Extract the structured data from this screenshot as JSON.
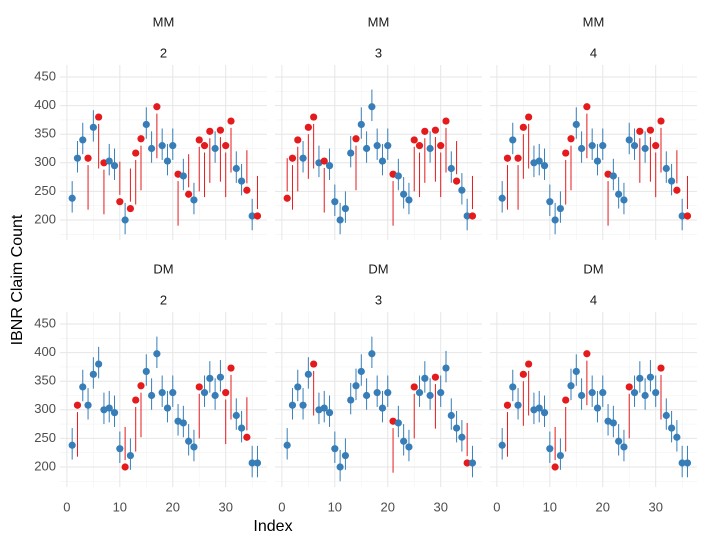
{
  "xlabel": "Index",
  "ylabel": "IBNR Claim Count",
  "chart_data": [
    {
      "type": "scatter",
      "title": "MM",
      "subtitle": "2",
      "x": [
        1,
        2,
        3,
        4,
        5,
        6,
        7,
        8,
        9,
        10,
        11,
        12,
        13,
        14,
        15,
        16,
        17,
        18,
        19,
        20,
        21,
        22,
        23,
        24,
        25,
        26,
        27,
        28,
        29,
        30,
        31,
        32,
        33,
        34,
        35,
        36
      ],
      "values": [
        238,
        308,
        340,
        308,
        362,
        380,
        300,
        303,
        295,
        232,
        200,
        220,
        317,
        342,
        367,
        325,
        398,
        330,
        303,
        330,
        280,
        277,
        245,
        235,
        340,
        330,
        355,
        325,
        357,
        330,
        373,
        290,
        268,
        252,
        207,
        207
      ],
      "lower": [
        213,
        283,
        315,
        218,
        337,
        290,
        210,
        278,
        270,
        244,
        175,
        232,
        227,
        252,
        342,
        300,
        308,
        305,
        278,
        305,
        190,
        252,
        257,
        210,
        250,
        240,
        265,
        300,
        267,
        240,
        283,
        265,
        243,
        264,
        182,
        219
      ],
      "upper": [
        268,
        338,
        370,
        296,
        392,
        368,
        288,
        333,
        325,
        302,
        230,
        290,
        305,
        330,
        397,
        355,
        386,
        360,
        333,
        360,
        268,
        307,
        315,
        265,
        328,
        318,
        343,
        355,
        345,
        318,
        361,
        320,
        298,
        322,
        237,
        277
      ],
      "colors": [
        "#377eb8",
        "#377eb8",
        "#377eb8",
        "#e41a1c",
        "#377eb8",
        "#e41a1c",
        "#e41a1c",
        "#377eb8",
        "#377eb8",
        "#e41a1c",
        "#377eb8",
        "#e41a1c",
        "#e41a1c",
        "#e41a1c",
        "#377eb8",
        "#377eb8",
        "#e41a1c",
        "#377eb8",
        "#377eb8",
        "#377eb8",
        "#e41a1c",
        "#377eb8",
        "#e41a1c",
        "#377eb8",
        "#e41a1c",
        "#e41a1c",
        "#e41a1c",
        "#377eb8",
        "#e41a1c",
        "#e41a1c",
        "#e41a1c",
        "#377eb8",
        "#377eb8",
        "#e41a1c",
        "#377eb8",
        "#e41a1c"
      ],
      "xlim": [
        -1.3,
        37.8
      ],
      "ylim": [
        165,
        471
      ],
      "xticks": [
        0,
        10,
        20,
        30
      ],
      "yticks": [
        200,
        250,
        300,
        350,
        400,
        450
      ],
      "grid": true
    },
    {
      "type": "scatter",
      "title": "MM",
      "subtitle": "3",
      "x": [
        1,
        2,
        3,
        4,
        5,
        6,
        7,
        8,
        9,
        10,
        11,
        12,
        13,
        14,
        15,
        16,
        17,
        18,
        19,
        20,
        21,
        22,
        23,
        24,
        25,
        26,
        27,
        28,
        29,
        30,
        31,
        32,
        33,
        34,
        35,
        36
      ],
      "values": [
        238,
        308,
        340,
        308,
        362,
        380,
        300,
        303,
        295,
        232,
        200,
        220,
        317,
        342,
        367,
        325,
        398,
        330,
        303,
        330,
        280,
        277,
        245,
        235,
        340,
        330,
        355,
        325,
        357,
        330,
        373,
        290,
        268,
        252,
        207,
        207
      ],
      "lower": [
        250,
        218,
        250,
        283,
        272,
        290,
        275,
        213,
        270,
        207,
        175,
        195,
        292,
        252,
        342,
        300,
        373,
        305,
        278,
        305,
        190,
        252,
        220,
        210,
        250,
        240,
        265,
        300,
        267,
        240,
        283,
        265,
        280,
        227,
        182,
        219
      ],
      "upper": [
        308,
        296,
        328,
        338,
        350,
        368,
        330,
        291,
        325,
        262,
        230,
        250,
        347,
        330,
        397,
        355,
        428,
        360,
        333,
        360,
        268,
        307,
        275,
        265,
        328,
        318,
        343,
        355,
        345,
        318,
        361,
        320,
        338,
        282,
        237,
        277
      ],
      "colors": [
        "#e41a1c",
        "#e41a1c",
        "#e41a1c",
        "#377eb8",
        "#e41a1c",
        "#e41a1c",
        "#377eb8",
        "#e41a1c",
        "#377eb8",
        "#377eb8",
        "#377eb8",
        "#377eb8",
        "#377eb8",
        "#e41a1c",
        "#377eb8",
        "#377eb8",
        "#377eb8",
        "#377eb8",
        "#377eb8",
        "#377eb8",
        "#e41a1c",
        "#377eb8",
        "#377eb8",
        "#377eb8",
        "#e41a1c",
        "#e41a1c",
        "#e41a1c",
        "#377eb8",
        "#e41a1c",
        "#e41a1c",
        "#e41a1c",
        "#377eb8",
        "#e41a1c",
        "#377eb8",
        "#377eb8",
        "#e41a1c"
      ],
      "xlim": [
        -1.3,
        37.8
      ],
      "ylim": [
        165,
        471
      ],
      "xticks": [
        0,
        10,
        20,
        30
      ],
      "yticks": [
        200,
        250,
        300,
        350,
        400,
        450
      ],
      "grid": true
    },
    {
      "type": "scatter",
      "title": "MM",
      "subtitle": "4",
      "x": [
        1,
        2,
        3,
        4,
        5,
        6,
        7,
        8,
        9,
        10,
        11,
        12,
        13,
        14,
        15,
        16,
        17,
        18,
        19,
        20,
        21,
        22,
        23,
        24,
        25,
        26,
        27,
        28,
        29,
        30,
        31,
        32,
        33,
        34,
        35,
        36
      ],
      "values": [
        238,
        308,
        340,
        308,
        362,
        380,
        300,
        303,
        295,
        232,
        200,
        220,
        317,
        342,
        367,
        325,
        398,
        330,
        303,
        330,
        280,
        277,
        245,
        235,
        340,
        330,
        355,
        325,
        357,
        330,
        373,
        290,
        268,
        252,
        207,
        207
      ],
      "lower": [
        213,
        218,
        315,
        218,
        272,
        290,
        275,
        278,
        270,
        207,
        175,
        195,
        227,
        252,
        342,
        300,
        308,
        305,
        278,
        305,
        190,
        252,
        220,
        210,
        315,
        305,
        265,
        300,
        267,
        240,
        283,
        265,
        243,
        264,
        182,
        219
      ],
      "upper": [
        268,
        296,
        370,
        296,
        350,
        368,
        330,
        333,
        325,
        262,
        230,
        250,
        305,
        330,
        397,
        355,
        386,
        360,
        333,
        360,
        268,
        307,
        275,
        265,
        370,
        360,
        343,
        355,
        345,
        318,
        361,
        320,
        298,
        322,
        237,
        277
      ],
      "colors": [
        "#377eb8",
        "#e41a1c",
        "#377eb8",
        "#e41a1c",
        "#e41a1c",
        "#e41a1c",
        "#377eb8",
        "#377eb8",
        "#377eb8",
        "#377eb8",
        "#377eb8",
        "#377eb8",
        "#e41a1c",
        "#e41a1c",
        "#377eb8",
        "#377eb8",
        "#e41a1c",
        "#377eb8",
        "#377eb8",
        "#377eb8",
        "#e41a1c",
        "#377eb8",
        "#377eb8",
        "#377eb8",
        "#377eb8",
        "#377eb8",
        "#e41a1c",
        "#377eb8",
        "#e41a1c",
        "#e41a1c",
        "#e41a1c",
        "#377eb8",
        "#377eb8",
        "#e41a1c",
        "#377eb8",
        "#e41a1c"
      ],
      "xlim": [
        -1.3,
        37.8
      ],
      "ylim": [
        165,
        471
      ],
      "xticks": [
        0,
        10,
        20,
        30
      ],
      "yticks": [
        200,
        250,
        300,
        350,
        400,
        450
      ],
      "grid": true
    },
    {
      "type": "scatter",
      "title": "DM",
      "subtitle": "2",
      "x": [
        1,
        2,
        3,
        4,
        5,
        6,
        7,
        8,
        9,
        10,
        11,
        12,
        13,
        14,
        15,
        16,
        17,
        18,
        19,
        20,
        21,
        22,
        23,
        24,
        25,
        26,
        27,
        28,
        29,
        30,
        31,
        32,
        33,
        34,
        35,
        36
      ],
      "values": [
        238,
        308,
        340,
        308,
        362,
        380,
        300,
        303,
        295,
        232,
        200,
        220,
        317,
        342,
        367,
        325,
        398,
        330,
        303,
        330,
        280,
        277,
        245,
        235,
        340,
        330,
        355,
        325,
        357,
        330,
        373,
        290,
        268,
        252,
        207,
        207
      ],
      "lower": [
        213,
        218,
        315,
        283,
        337,
        355,
        275,
        278,
        270,
        207,
        212,
        195,
        227,
        252,
        342,
        300,
        373,
        305,
        278,
        305,
        255,
        252,
        220,
        210,
        250,
        305,
        330,
        300,
        332,
        240,
        283,
        265,
        243,
        264,
        182,
        182
      ],
      "upper": [
        268,
        296,
        370,
        338,
        392,
        410,
        330,
        333,
        325,
        262,
        270,
        250,
        305,
        330,
        397,
        355,
        428,
        360,
        333,
        360,
        310,
        307,
        275,
        265,
        328,
        360,
        385,
        355,
        387,
        318,
        361,
        320,
        298,
        322,
        237,
        237
      ],
      "colors": [
        "#377eb8",
        "#e41a1c",
        "#377eb8",
        "#377eb8",
        "#377eb8",
        "#377eb8",
        "#377eb8",
        "#377eb8",
        "#377eb8",
        "#377eb8",
        "#e41a1c",
        "#377eb8",
        "#e41a1c",
        "#e41a1c",
        "#377eb8",
        "#377eb8",
        "#377eb8",
        "#377eb8",
        "#377eb8",
        "#377eb8",
        "#377eb8",
        "#377eb8",
        "#377eb8",
        "#377eb8",
        "#e41a1c",
        "#377eb8",
        "#377eb8",
        "#377eb8",
        "#377eb8",
        "#e41a1c",
        "#e41a1c",
        "#377eb8",
        "#377eb8",
        "#e41a1c",
        "#377eb8",
        "#377eb8"
      ],
      "xlim": [
        -1.3,
        37.8
      ],
      "ylim": [
        165,
        471
      ],
      "xticks": [
        0,
        10,
        20,
        30
      ],
      "yticks": [
        200,
        250,
        300,
        350,
        400,
        450
      ],
      "grid": true
    },
    {
      "type": "scatter",
      "title": "DM",
      "subtitle": "3",
      "x": [
        1,
        2,
        3,
        4,
        5,
        6,
        7,
        8,
        9,
        10,
        11,
        12,
        13,
        14,
        15,
        16,
        17,
        18,
        19,
        20,
        21,
        22,
        23,
        24,
        25,
        26,
        27,
        28,
        29,
        30,
        31,
        32,
        33,
        34,
        35,
        36
      ],
      "values": [
        238,
        308,
        340,
        308,
        362,
        380,
        300,
        303,
        295,
        232,
        200,
        220,
        317,
        342,
        367,
        325,
        398,
        330,
        303,
        330,
        280,
        277,
        245,
        235,
        340,
        330,
        355,
        325,
        357,
        330,
        373,
        290,
        268,
        252,
        207,
        207
      ],
      "lower": [
        213,
        283,
        315,
        283,
        337,
        290,
        275,
        278,
        270,
        207,
        175,
        195,
        292,
        317,
        342,
        300,
        373,
        305,
        278,
        305,
        190,
        252,
        220,
        210,
        250,
        305,
        330,
        300,
        267,
        305,
        348,
        265,
        243,
        227,
        219,
        182
      ],
      "upper": [
        268,
        338,
        370,
        338,
        392,
        368,
        330,
        333,
        325,
        262,
        230,
        250,
        347,
        372,
        397,
        355,
        428,
        360,
        333,
        360,
        268,
        307,
        275,
        265,
        328,
        360,
        385,
        355,
        345,
        360,
        403,
        320,
        298,
        282,
        277,
        237
      ],
      "colors": [
        "#377eb8",
        "#377eb8",
        "#377eb8",
        "#377eb8",
        "#377eb8",
        "#e41a1c",
        "#377eb8",
        "#377eb8",
        "#377eb8",
        "#377eb8",
        "#377eb8",
        "#377eb8",
        "#377eb8",
        "#377eb8",
        "#377eb8",
        "#377eb8",
        "#377eb8",
        "#377eb8",
        "#377eb8",
        "#377eb8",
        "#e41a1c",
        "#377eb8",
        "#377eb8",
        "#377eb8",
        "#e41a1c",
        "#377eb8",
        "#377eb8",
        "#377eb8",
        "#e41a1c",
        "#377eb8",
        "#377eb8",
        "#377eb8",
        "#377eb8",
        "#377eb8",
        "#e41a1c",
        "#377eb8"
      ],
      "xlim": [
        -1.3,
        37.8
      ],
      "ylim": [
        165,
        471
      ],
      "xticks": [
        0,
        10,
        20,
        30
      ],
      "yticks": [
        200,
        250,
        300,
        350,
        400,
        450
      ],
      "grid": true
    },
    {
      "type": "scatter",
      "title": "DM",
      "subtitle": "4",
      "x": [
        1,
        2,
        3,
        4,
        5,
        6,
        7,
        8,
        9,
        10,
        11,
        12,
        13,
        14,
        15,
        16,
        17,
        18,
        19,
        20,
        21,
        22,
        23,
        24,
        25,
        26,
        27,
        28,
        29,
        30,
        31,
        32,
        33,
        34,
        35,
        36
      ],
      "values": [
        238,
        308,
        340,
        308,
        362,
        380,
        300,
        303,
        295,
        232,
        200,
        220,
        317,
        342,
        367,
        325,
        398,
        330,
        303,
        330,
        280,
        277,
        245,
        235,
        340,
        330,
        355,
        325,
        357,
        330,
        373,
        290,
        268,
        252,
        207,
        207
      ],
      "lower": [
        213,
        218,
        315,
        283,
        272,
        290,
        275,
        278,
        270,
        207,
        212,
        195,
        227,
        317,
        342,
        300,
        308,
        305,
        278,
        305,
        255,
        252,
        220,
        210,
        250,
        305,
        330,
        300,
        332,
        305,
        283,
        265,
        243,
        227,
        182,
        182
      ],
      "upper": [
        268,
        296,
        370,
        338,
        350,
        368,
        330,
        333,
        325,
        262,
        270,
        250,
        305,
        372,
        397,
        355,
        386,
        360,
        333,
        360,
        310,
        307,
        275,
        265,
        328,
        360,
        385,
        355,
        387,
        360,
        361,
        320,
        298,
        282,
        237,
        237
      ],
      "colors": [
        "#377eb8",
        "#e41a1c",
        "#377eb8",
        "#377eb8",
        "#e41a1c",
        "#e41a1c",
        "#377eb8",
        "#377eb8",
        "#377eb8",
        "#377eb8",
        "#e41a1c",
        "#377eb8",
        "#e41a1c",
        "#377eb8",
        "#377eb8",
        "#377eb8",
        "#e41a1c",
        "#377eb8",
        "#377eb8",
        "#377eb8",
        "#377eb8",
        "#377eb8",
        "#377eb8",
        "#377eb8",
        "#e41a1c",
        "#377eb8",
        "#377eb8",
        "#377eb8",
        "#377eb8",
        "#377eb8",
        "#e41a1c",
        "#377eb8",
        "#377eb8",
        "#377eb8",
        "#377eb8",
        "#377eb8"
      ],
      "xlim": [
        -1.3,
        37.8
      ],
      "ylim": [
        165,
        471
      ],
      "xticks": [
        0,
        10,
        20,
        30
      ],
      "yticks": [
        200,
        250,
        300,
        350,
        400,
        450
      ],
      "grid": true
    }
  ]
}
